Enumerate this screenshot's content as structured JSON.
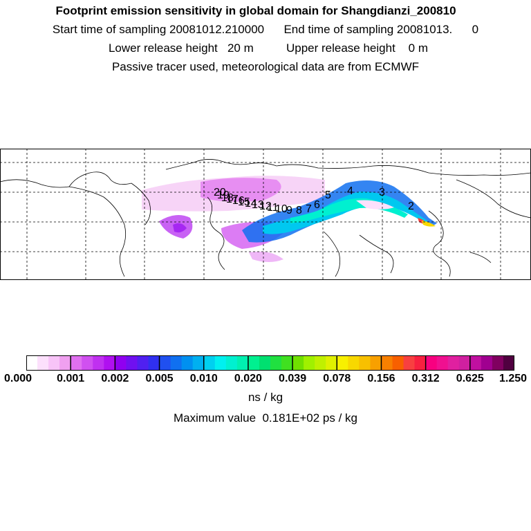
{
  "header": {
    "title": "Footprint emission sensitivity in global domain for Shangdianzi_200810",
    "sampling": "Start time of sampling 20081012.210000      End time of sampling 20081013.      0",
    "release": "Lower release height   20 m          Upper release height    0 m",
    "note": "Passive tracer used, meteorological data are from ECMWF"
  },
  "map": {
    "trajectory_labels": [
      "20",
      "19",
      "18",
      "17",
      "16",
      "15",
      "14",
      "13",
      "12",
      "11",
      "10",
      "9",
      "8",
      "7",
      "6",
      "5",
      "4",
      "3",
      "2"
    ]
  },
  "colorbar": {
    "labels": [
      "0.000",
      "0.001",
      "0.002",
      "0.005",
      "0.010",
      "0.020",
      "0.039",
      "0.078",
      "0.156",
      "0.312",
      "0.625",
      "1.250"
    ],
    "colors": [
      "#ffffff",
      "#fce0fc",
      "#f8c4f8",
      "#f0a0f0",
      "#e070f0",
      "#d050f0",
      "#c030f0",
      "#b010f0",
      "#9000f0",
      "#7010f0",
      "#5020f0",
      "#3030f0",
      "#2050f0",
      "#1070f0",
      "#0090f0",
      "#00b0f0",
      "#00d0f0",
      "#00f0f0",
      "#00f0d0",
      "#00f0b0",
      "#00f090",
      "#00e070",
      "#20e040",
      "#40e020",
      "#70e000",
      "#a0f000",
      "#c0f000",
      "#e0f000",
      "#f8f000",
      "#f8d800",
      "#f8c000",
      "#f8a000",
      "#f88000",
      "#f86000",
      "#f84040",
      "#f82040",
      "#f80080",
      "#f01090",
      "#e020a0",
      "#d020a0",
      "#c010a0",
      "#a00090",
      "#800060",
      "#500040"
    ]
  },
  "units": "ns / kg",
  "max_value": "Maximum value  0.181E+02 ps / kg"
}
